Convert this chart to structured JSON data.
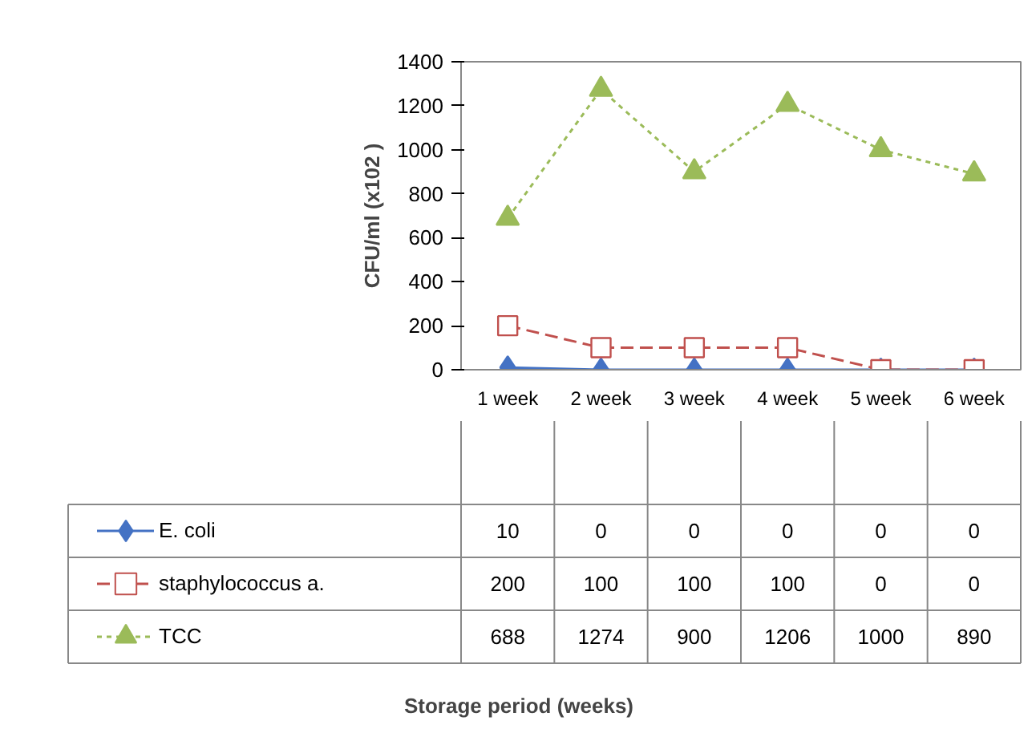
{
  "chart_data": {
    "type": "line",
    "annotations": [
      "Storage period (weeks)"
    ],
    "ylabel": "CFU/ml (x102 )",
    "categories": [
      "1 week",
      "2 week",
      "3 week",
      "4 week",
      "5 week",
      "6 week"
    ],
    "ylim": [
      0,
      1400
    ],
    "yticks": [
      0,
      200,
      400,
      600,
      800,
      1000,
      1200,
      1400
    ],
    "grid": false,
    "data_labels": true,
    "legend": "bottom",
    "series": [
      {
        "name": "E. coli",
        "color": "#4472c4",
        "marker": "diamond",
        "line_style": "solid",
        "values": [
          10,
          0,
          0,
          0,
          0,
          0
        ]
      },
      {
        "name": "staphylococcus a.",
        "color": "#c0504d",
        "marker": "square",
        "line_style": "dashed",
        "values": [
          200,
          100,
          100,
          100,
          0,
          0
        ]
      },
      {
        "name": "TCC",
        "color": "#9bbb59",
        "marker": "triangle",
        "line_style": "dotted",
        "values": [
          688,
          1274,
          900,
          1206,
          1000,
          890
        ]
      }
    ]
  }
}
